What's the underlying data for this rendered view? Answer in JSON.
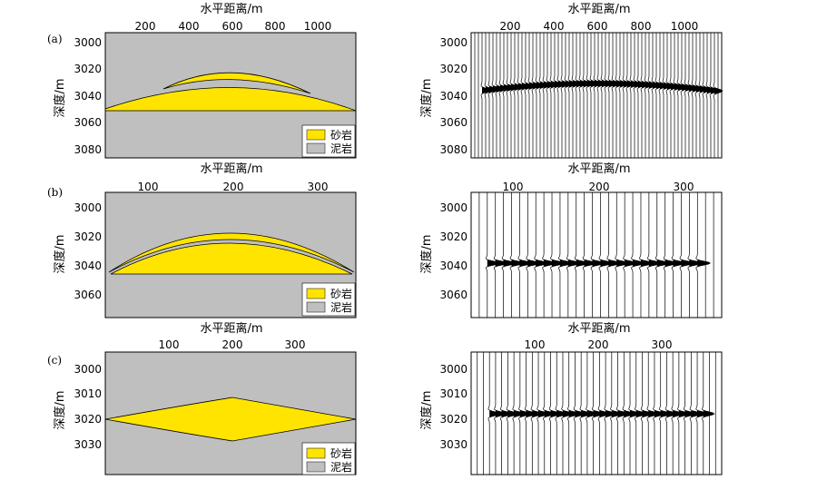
{
  "colors": {
    "sand": "#FFE400",
    "mud": "#BFBFBF",
    "line": "#000000"
  },
  "rows": [
    {
      "label": "(a)",
      "x_title": "水平距离/m",
      "y_title": "深度/m",
      "x_ticks": [
        "200",
        "400",
        "600",
        "800",
        "1000"
      ],
      "y_ticks": [
        "3000",
        "3020",
        "3040",
        "3060",
        "3080"
      ],
      "seismic_x_title": "水平距离/m",
      "seismic_y_title": "深度/m",
      "seismic_x_ticks": [
        "200",
        "400",
        "600",
        "800",
        "1000"
      ],
      "seismic_y_ticks": [
        "3000",
        "3020",
        "3040",
        "3060",
        "3080"
      ],
      "legend": {
        "sand": "砂岩",
        "mud": "泥岩"
      }
    },
    {
      "label": "(b)",
      "x_title": "水平距离/m",
      "y_title": "深度/m",
      "x_ticks": [
        "100",
        "200",
        "300"
      ],
      "y_ticks": [
        "3000",
        "3020",
        "3040",
        "3060"
      ],
      "seismic_x_title": "水平距离/m",
      "seismic_y_title": "深度/m",
      "seismic_x_ticks": [
        "100",
        "200",
        "300"
      ],
      "seismic_y_ticks": [
        "3000",
        "3020",
        "3040",
        "3060"
      ],
      "legend": {
        "sand": "砂岩",
        "mud": "泥岩"
      }
    },
    {
      "label": "(c)",
      "x_title": "水平距离/m",
      "y_title": "深度/m",
      "x_ticks": [
        "100",
        "200",
        "300"
      ],
      "y_ticks": [
        "3000",
        "3010",
        "3020",
        "3030"
      ],
      "seismic_x_title": "水平距离/m",
      "seismic_y_title": "深度/m",
      "seismic_x_ticks": [
        "100",
        "200",
        "300"
      ],
      "seismic_y_ticks": [
        "3000",
        "3010",
        "3020",
        "3030"
      ],
      "legend": {
        "sand": "砂岩",
        "mud": "泥岩"
      }
    }
  ]
}
